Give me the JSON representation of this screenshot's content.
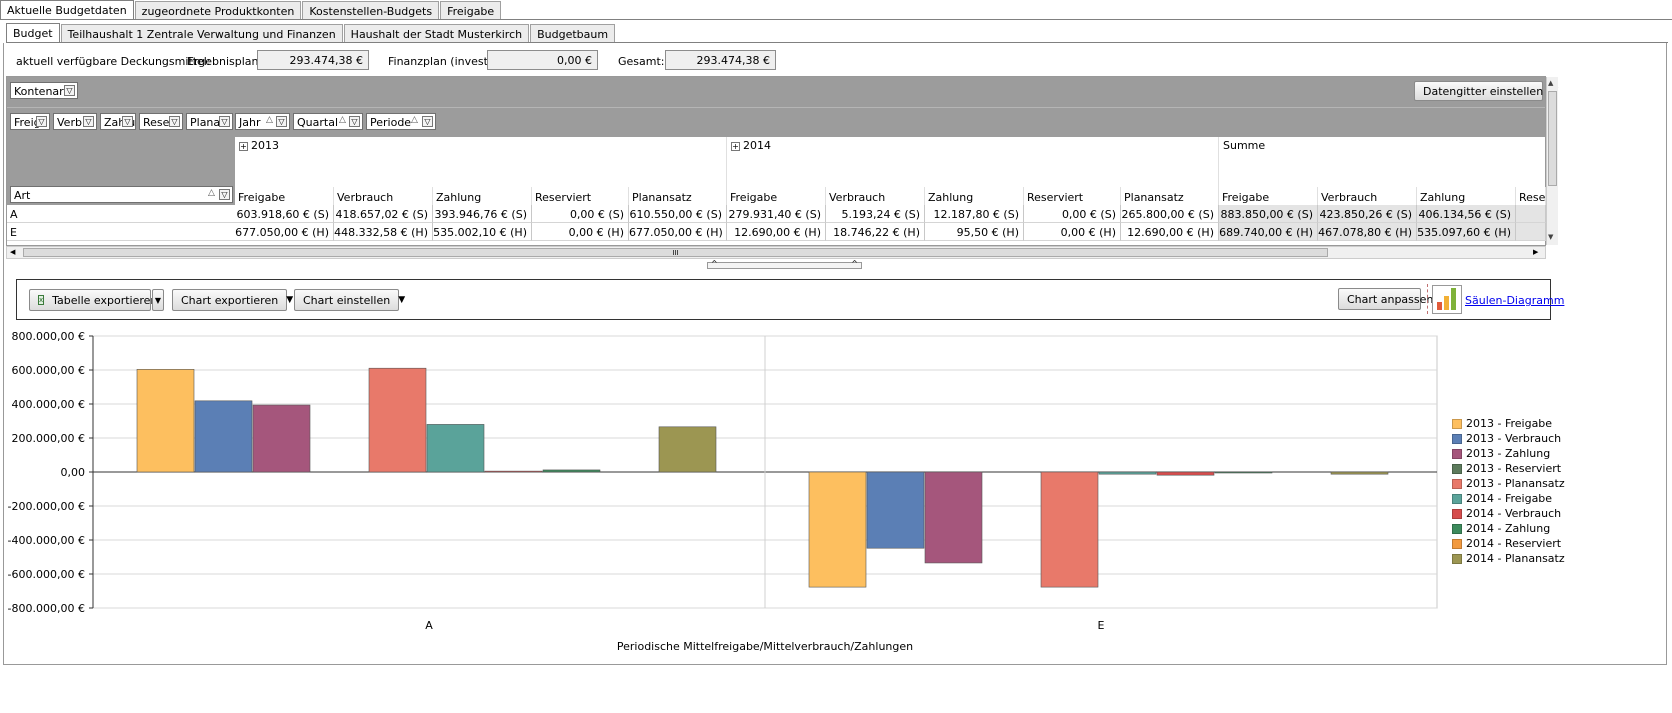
{
  "tabs_main": [
    {
      "label": "Aktuelle Budgetdaten",
      "active": true
    },
    {
      "label": "zugeordnete Produktkonten"
    },
    {
      "label": "Kostenstellen-Budgets"
    },
    {
      "label": "Freigabe"
    }
  ],
  "tabs_sub": [
    {
      "label": "Budget",
      "active": true
    },
    {
      "label": "Teilhaushalt 1 Zentrale Verwaltung und Finanzen"
    },
    {
      "label": "Haushalt der Stadt Musterkirch"
    },
    {
      "label": "Budgetbaum"
    }
  ],
  "deckung": {
    "label": "aktuell verfügbare Deckungsmittel:",
    "ergebnis_label": "Ergebnisplan:",
    "ergebnis_value": "293.474,38 €",
    "finanz_label": "Finanzplan (invest):",
    "finanz_value": "0,00 €",
    "gesamt_label": "Gesamt:",
    "gesamt_value": "293.474,38 €"
  },
  "pivot": {
    "filter_kontenart": "Kontenart",
    "datagrid_button": "Datengitter einstellen",
    "fields": [
      "Freig",
      "Verbra",
      "Zahlu",
      "Reser",
      "Planan",
      "Jahr",
      "Quartal",
      "Periode"
    ],
    "row_field": "Art",
    "years": [
      "2013",
      "2014",
      "Summe"
    ],
    "col_headers": [
      "Freigabe",
      "Verbrauch",
      "Zahlung",
      "Reserviert",
      "Planansatz",
      "Freigabe",
      "Verbrauch",
      "Zahlung",
      "Reserviert",
      "Planansatz",
      "Freigabe",
      "Verbrauch",
      "Zahlung",
      "Reser"
    ],
    "rows": [
      {
        "label": "A",
        "cells": [
          "603.918,60 € (S)",
          "418.657,02 € (S)",
          "393.946,76 € (S)",
          "0,00 € (S)",
          "610.550,00 € (S)",
          "279.931,40 € (S)",
          "5.193,24 € (S)",
          "12.187,80 € (S)",
          "0,00 € (S)",
          "265.800,00 € (S)",
          "883.850,00 € (S)",
          "423.850,26 € (S)",
          "406.134,56 € (S)",
          ""
        ]
      },
      {
        "label": "E",
        "cells": [
          "677.050,00 € (H)",
          "448.332,58 € (H)",
          "535.002,10 € (H)",
          "0,00 € (H)",
          "677.050,00 € (H)",
          "12.690,00 € (H)",
          "18.746,22 € (H)",
          "95,50 € (H)",
          "0,00 € (H)",
          "12.690,00 € (H)",
          "689.740,00 € (H)",
          "467.078,80 € (H)",
          "535.097,60 € (H)",
          ""
        ]
      }
    ],
    "scroll_glyph": "III"
  },
  "toolbar": {
    "export_table": "Tabelle exportieren",
    "export_chart": "Chart exportieren",
    "chart_settings": "Chart einstellen",
    "chart_fit": "Chart anpassen",
    "chart_type_link": "Säulen-Diagramm"
  },
  "chart_data": {
    "type": "bar",
    "categories": [
      "A",
      "E"
    ],
    "xlabel": "Periodische Mittelfreigabe/Mittelverbrauch/Zahlungen",
    "ylim": [
      -800000,
      800000
    ],
    "yticks": [
      "800.000,00 €",
      "600.000,00 €",
      "400.000,00 €",
      "200.000,00 €",
      "0,00",
      "-200.000,00 €",
      "-400.000,00 €",
      "-600.000,00 €",
      "-800.000,00 €"
    ],
    "legend_position": "right",
    "series": [
      {
        "name": "2013 - Freigabe",
        "color": "#fdbf5f",
        "values": [
          603918.6,
          -677050.0
        ]
      },
      {
        "name": "2013 - Verbrauch",
        "color": "#5b7fb5",
        "values": [
          418657.02,
          -448332.58
        ]
      },
      {
        "name": "2013 - Zahlung",
        "color": "#a5567c",
        "values": [
          393946.76,
          -535002.1
        ]
      },
      {
        "name": "2013 - Reserviert",
        "color": "#5c7a5c",
        "values": [
          0,
          0
        ]
      },
      {
        "name": "2013 - Planansatz",
        "color": "#e8796a",
        "values": [
          610550.0,
          -677050.0
        ]
      },
      {
        "name": "2014 - Freigabe",
        "color": "#5aa39a",
        "values": [
          279931.4,
          -12690.0
        ]
      },
      {
        "name": "2014 - Verbrauch",
        "color": "#d64d4d",
        "values": [
          5193.24,
          -18746.22
        ]
      },
      {
        "name": "2014 - Zahlung",
        "color": "#3c8a5c",
        "values": [
          12187.8,
          -95.5
        ]
      },
      {
        "name": "2014 - Reserviert",
        "color": "#f29a3f",
        "values": [
          0,
          0
        ]
      },
      {
        "name": "2014 - Planansatz",
        "color": "#9c9652",
        "values": [
          265800.0,
          -12690.0
        ]
      }
    ]
  }
}
